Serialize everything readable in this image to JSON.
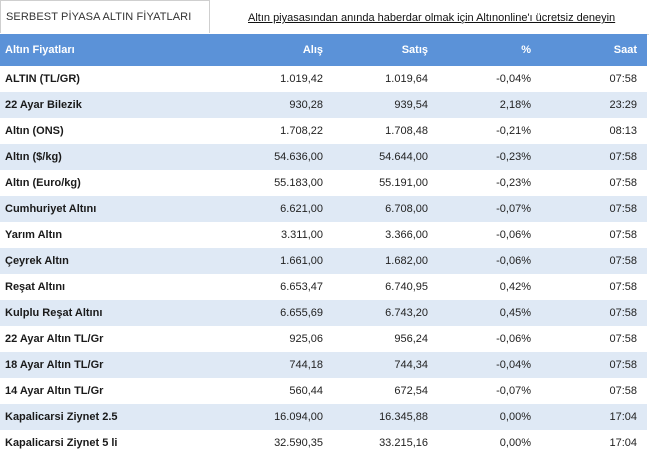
{
  "tab_title": "SERBEST PİYASA ALTIN FİYATLARI",
  "promo_link": "Altın piyasasından anında haberdar olmak için Altınonline'ı ücretsiz deneyin",
  "headers": [
    "Altın Fiyatları",
    "Alış",
    "Satış",
    "%",
    "Saat"
  ],
  "rows": [
    [
      "ALTIN (TL/GR)",
      "1.019,42",
      "1.019,64",
      "-0,04%",
      "07:58"
    ],
    [
      "22 Ayar Bilezik",
      "930,28",
      "939,54",
      "2,18%",
      "23:29"
    ],
    [
      "Altın (ONS)",
      "1.708,22",
      "1.708,48",
      "-0,21%",
      "08:13"
    ],
    [
      "Altın ($/kg)",
      "54.636,00",
      "54.644,00",
      "-0,23%",
      "07:58"
    ],
    [
      "Altın (Euro/kg)",
      "55.183,00",
      "55.191,00",
      "-0,23%",
      "07:58"
    ],
    [
      "Cumhuriyet Altını",
      "6.621,00",
      "6.708,00",
      "-0,07%",
      "07:58"
    ],
    [
      "Yarım Altın",
      "3.311,00",
      "3.366,00",
      "-0,06%",
      "07:58"
    ],
    [
      "Çeyrek Altın",
      "1.661,00",
      "1.682,00",
      "-0,06%",
      "07:58"
    ],
    [
      "Reşat Altını",
      "6.653,47",
      "6.740,95",
      "0,42%",
      "07:58"
    ],
    [
      "Kulplu Reşat Altını",
      "6.655,69",
      "6.743,20",
      "0,45%",
      "07:58"
    ],
    [
      "22 Ayar Altın TL/Gr",
      "925,06",
      "956,24",
      "-0,06%",
      "07:58"
    ],
    [
      "18 Ayar Altın TL/Gr",
      "744,18",
      "744,34",
      "-0,04%",
      "07:58"
    ],
    [
      "14 Ayar Altın TL/Gr",
      "560,44",
      "672,54",
      "-0,07%",
      "07:58"
    ],
    [
      "Kapalicarsi Ziynet 2.5",
      "16.094,00",
      "16.345,88",
      "0,00%",
      "17:04"
    ],
    [
      "Kapalicarsi Ziynet 5 li",
      "32.590,35",
      "33.215,16",
      "0,00%",
      "17:04"
    ]
  ]
}
